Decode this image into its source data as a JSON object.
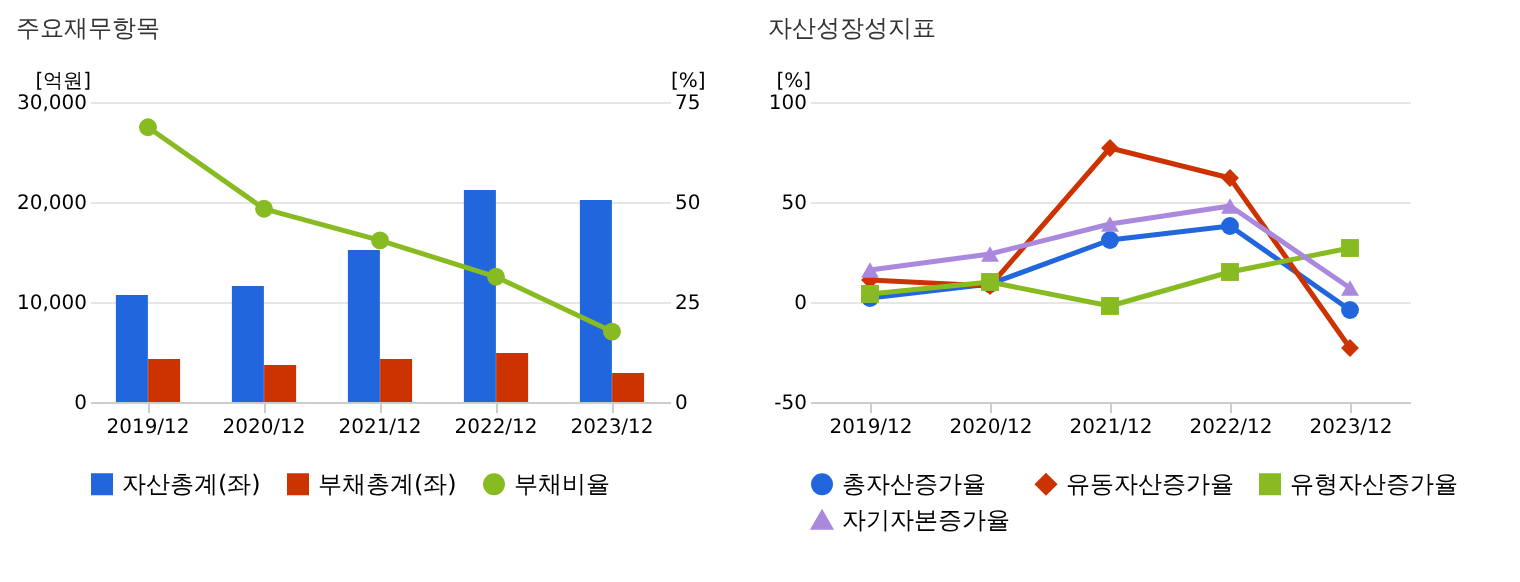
{
  "chart_data": [
    {
      "type": "bar",
      "title": "주요재무항목",
      "categories": [
        "2019/12",
        "2020/12",
        "2021/12",
        "2022/12",
        "2023/12"
      ],
      "ylabel": "[억원]",
      "y2label": "[%]",
      "ylim": [
        0,
        30000
      ],
      "yticks": [
        0,
        {
          "value": 10000,
          "label": "10,000"
        },
        {
          "value": 20000,
          "label": "20,000"
        },
        {
          "value": 30000,
          "label": "30,000"
        }
      ],
      "y2lim": [
        0,
        75
      ],
      "y2ticks": [
        0,
        25,
        50,
        75
      ],
      "grid": "y",
      "legend": "bottom",
      "series": [
        {
          "name": "자산총계(좌)",
          "color": "#2266dd",
          "values": [
            10700,
            11600,
            15200,
            21200,
            20200
          ]
        },
        {
          "name": "부채총계(좌)",
          "color": "#cc3300",
          "values": [
            4300,
            3700,
            4300,
            4900,
            2900
          ]
        },
        {
          "name": "부채비율",
          "type": "line",
          "axis": "y2",
          "marker": "circle",
          "color": "#88bb22",
          "values": [
            68.7,
            48.3,
            40.4,
            31.3,
            17.6
          ]
        }
      ]
    },
    {
      "type": "line",
      "title": "자산성장성지표",
      "categories": [
        "2019/12",
        "2020/12",
        "2021/12",
        "2022/12",
        "2023/12"
      ],
      "ylabel": "[%]",
      "ylim": [
        -50,
        100
      ],
      "yticks": [
        -50,
        0,
        50,
        100
      ],
      "grid": "y",
      "legend": "bottom",
      "series": [
        {
          "name": "총자산증가율",
          "color": "#2266dd",
          "marker": "circle",
          "values": [
            2,
            9,
            31,
            38,
            -4
          ]
        },
        {
          "name": "유동자산증가율",
          "color": "#cc3300",
          "marker": "diamond",
          "values": [
            11,
            8,
            77,
            62,
            -23
          ]
        },
        {
          "name": "유형자산증가율",
          "color": "#88bb22",
          "marker": "square",
          "values": [
            4,
            10,
            -2,
            15,
            27
          ]
        },
        {
          "name": "자기자본증가율",
          "color": "#aa88dd",
          "marker": "triangle",
          "values": [
            16,
            24,
            39,
            48,
            7
          ]
        }
      ]
    }
  ]
}
